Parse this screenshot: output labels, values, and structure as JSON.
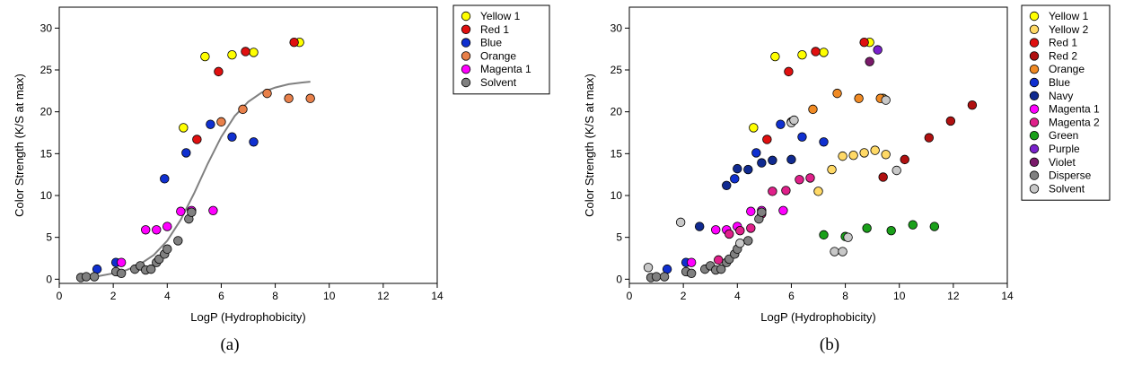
{
  "chart_data": [
    {
      "type": "scatter",
      "panel_label": "(a)",
      "xlabel": "LogP (Hydrophobicity)",
      "ylabel": "Color Strength (K/S at max)",
      "xlim": [
        0,
        14
      ],
      "ylim": [
        -0.5,
        32.5
      ],
      "xticks": [
        0,
        2,
        4,
        6,
        8,
        10,
        12,
        14
      ],
      "yticks": [
        0,
        5,
        10,
        15,
        20,
        25,
        30
      ],
      "grid": false,
      "legend_position": "right",
      "fit_curve": {
        "style": "sigmoid",
        "color": "#808080",
        "points": [
          [
            0.8,
            0.2
          ],
          [
            1.5,
            0.4
          ],
          [
            2.0,
            0.7
          ],
          [
            2.5,
            1.1
          ],
          [
            3.0,
            1.8
          ],
          [
            3.5,
            2.9
          ],
          [
            4.0,
            4.6
          ],
          [
            4.5,
            7.1
          ],
          [
            5.0,
            10.3
          ],
          [
            5.5,
            13.8
          ],
          [
            6.0,
            17.0
          ],
          [
            6.5,
            19.5
          ],
          [
            7.0,
            21.2
          ],
          [
            7.5,
            22.3
          ],
          [
            8.0,
            22.9
          ],
          [
            8.5,
            23.3
          ],
          [
            9.0,
            23.5
          ],
          [
            9.3,
            23.6
          ]
        ]
      },
      "series": [
        {
          "name": "Yellow 1",
          "color": "#FFFF00",
          "points": [
            [
              4.6,
              18.1
            ],
            [
              5.4,
              26.6
            ],
            [
              6.4,
              26.8
            ],
            [
              7.2,
              27.1
            ],
            [
              8.9,
              28.3
            ]
          ]
        },
        {
          "name": "Red 1",
          "color": "#E01010",
          "points": [
            [
              5.1,
              16.7
            ],
            [
              5.9,
              24.8
            ],
            [
              6.9,
              27.2
            ],
            [
              8.7,
              28.3
            ]
          ]
        },
        {
          "name": "Blue",
          "color": "#1030D0",
          "points": [
            [
              1.4,
              1.2
            ],
            [
              2.1,
              2.0
            ],
            [
              3.9,
              12.0
            ],
            [
              4.7,
              15.1
            ],
            [
              5.6,
              18.5
            ],
            [
              6.4,
              17.0
            ],
            [
              7.2,
              16.4
            ]
          ]
        },
        {
          "name": "Orange",
          "color": "#E8804A",
          "points": [
            [
              6.0,
              18.8
            ],
            [
              6.8,
              20.3
            ],
            [
              7.7,
              22.2
            ],
            [
              8.5,
              21.6
            ],
            [
              9.3,
              21.6
            ]
          ]
        },
        {
          "name": "Magenta 1",
          "color": "#FF00FF",
          "points": [
            [
              2.3,
              2.0
            ],
            [
              3.2,
              5.9
            ],
            [
              3.6,
              5.9
            ],
            [
              4.0,
              6.3
            ],
            [
              4.5,
              8.1
            ],
            [
              4.9,
              8.2
            ],
            [
              5.7,
              8.2
            ]
          ]
        },
        {
          "name": "Solvent",
          "color": "#808080",
          "points": [
            [
              0.8,
              0.2
            ],
            [
              1.0,
              0.3
            ],
            [
              1.3,
              0.3
            ],
            [
              2.1,
              0.9
            ],
            [
              2.3,
              0.7
            ],
            [
              2.8,
              1.2
            ],
            [
              3.0,
              1.6
            ],
            [
              3.2,
              1.1
            ],
            [
              3.4,
              1.2
            ],
            [
              3.6,
              2.0
            ],
            [
              3.7,
              2.4
            ],
            [
              3.9,
              3.0
            ],
            [
              4.0,
              3.6
            ],
            [
              4.4,
              4.6
            ],
            [
              4.8,
              7.2
            ],
            [
              4.9,
              8.0
            ]
          ]
        }
      ]
    },
    {
      "type": "scatter",
      "panel_label": "(b)",
      "xlabel": "LogP (Hydrophobicity)",
      "ylabel": "Color Strength (K/S at max)",
      "xlim": [
        0,
        14
      ],
      "ylim": [
        -0.5,
        32.5
      ],
      "xticks": [
        0,
        2,
        4,
        6,
        8,
        10,
        12,
        14
      ],
      "yticks": [
        0,
        5,
        10,
        15,
        20,
        25,
        30
      ],
      "grid": false,
      "legend_position": "right",
      "series": [
        {
          "name": "Yellow 1",
          "color": "#FFFF00",
          "points": [
            [
              4.6,
              18.1
            ],
            [
              5.4,
              26.6
            ],
            [
              6.4,
              26.8
            ],
            [
              7.2,
              27.1
            ],
            [
              8.9,
              28.3
            ]
          ]
        },
        {
          "name": "Yellow 2",
          "color": "#FFD966",
          "points": [
            [
              7.0,
              10.5
            ],
            [
              7.5,
              13.1
            ],
            [
              7.9,
              14.7
            ],
            [
              8.3,
              14.8
            ],
            [
              8.7,
              15.1
            ],
            [
              9.1,
              15.4
            ],
            [
              9.5,
              14.9
            ],
            [
              9.4,
              21.6
            ]
          ]
        },
        {
          "name": "Red 1",
          "color": "#E01010",
          "points": [
            [
              5.1,
              16.7
            ],
            [
              5.9,
              24.8
            ],
            [
              6.9,
              27.2
            ],
            [
              8.7,
              28.3
            ]
          ]
        },
        {
          "name": "Red 2",
          "color": "#B01010",
          "points": [
            [
              9.4,
              12.2
            ],
            [
              10.2,
              14.3
            ],
            [
              11.1,
              16.9
            ],
            [
              11.9,
              18.9
            ],
            [
              12.7,
              20.8
            ]
          ]
        },
        {
          "name": "Orange",
          "color": "#F08A24",
          "points": [
            [
              6.0,
              18.8
            ],
            [
              6.8,
              20.3
            ],
            [
              7.7,
              22.2
            ],
            [
              8.5,
              21.6
            ],
            [
              9.3,
              21.6
            ]
          ]
        },
        {
          "name": "Blue",
          "color": "#1030D0",
          "points": [
            [
              1.4,
              1.2
            ],
            [
              2.1,
              2.0
            ],
            [
              3.9,
              12.0
            ],
            [
              4.7,
              15.1
            ],
            [
              5.6,
              18.5
            ],
            [
              6.4,
              17.0
            ],
            [
              7.2,
              16.4
            ]
          ]
        },
        {
          "name": "Navy",
          "color": "#102A90",
          "points": [
            [
              2.6,
              6.3
            ],
            [
              3.6,
              11.2
            ],
            [
              4.0,
              13.2
            ],
            [
              4.4,
              13.1
            ],
            [
              4.9,
              13.9
            ],
            [
              5.3,
              14.2
            ],
            [
              6.0,
              14.3
            ]
          ]
        },
        {
          "name": "Magenta 1",
          "color": "#FF00FF",
          "points": [
            [
              2.3,
              2.0
            ],
            [
              3.2,
              5.9
            ],
            [
              3.6,
              5.9
            ],
            [
              4.0,
              6.3
            ],
            [
              4.5,
              8.1
            ],
            [
              4.9,
              8.2
            ],
            [
              5.7,
              8.2
            ]
          ]
        },
        {
          "name": "Magenta 2",
          "color": "#E0208A",
          "points": [
            [
              3.3,
              2.3
            ],
            [
              3.7,
              5.4
            ],
            [
              4.1,
              5.8
            ],
            [
              4.5,
              6.1
            ],
            [
              4.9,
              7.8
            ],
            [
              5.3,
              10.5
            ],
            [
              5.8,
              10.6
            ],
            [
              6.3,
              11.9
            ],
            [
              6.7,
              12.1
            ]
          ]
        },
        {
          "name": "Green",
          "color": "#1AA01A",
          "points": [
            [
              7.2,
              5.3
            ],
            [
              8.8,
              6.1
            ],
            [
              9.7,
              5.8
            ],
            [
              10.5,
              6.5
            ],
            [
              11.3,
              6.3
            ],
            [
              8.0,
              5.1
            ]
          ]
        },
        {
          "name": "Purple",
          "color": "#7A22CC",
          "points": [
            [
              9.2,
              27.4
            ]
          ]
        },
        {
          "name": "Violet",
          "color": "#7A1A6A",
          "points": [
            [
              8.9,
              26.0
            ]
          ]
        },
        {
          "name": "Disperse",
          "color": "#808080",
          "points": [
            [
              0.8,
              0.2
            ],
            [
              1.0,
              0.3
            ],
            [
              1.3,
              0.3
            ],
            [
              2.1,
              0.9
            ],
            [
              2.3,
              0.7
            ],
            [
              2.8,
              1.2
            ],
            [
              3.0,
              1.6
            ],
            [
              3.2,
              1.1
            ],
            [
              3.4,
              1.2
            ],
            [
              3.6,
              2.0
            ],
            [
              3.7,
              2.4
            ],
            [
              3.9,
              3.0
            ],
            [
              4.0,
              3.6
            ],
            [
              4.4,
              4.6
            ],
            [
              4.8,
              7.2
            ],
            [
              4.9,
              8.0
            ]
          ]
        },
        {
          "name": "Solvent",
          "color": "#C8C8C8",
          "points": [
            [
              0.7,
              1.4
            ],
            [
              1.9,
              6.8
            ],
            [
              4.1,
              4.3
            ],
            [
              6.0,
              18.7
            ],
            [
              6.1,
              19.0
            ],
            [
              7.6,
              3.3
            ],
            [
              8.1,
              5.0
            ],
            [
              7.9,
              3.3
            ],
            [
              9.5,
              21.4
            ],
            [
              9.9,
              13.0
            ]
          ]
        }
      ]
    }
  ]
}
